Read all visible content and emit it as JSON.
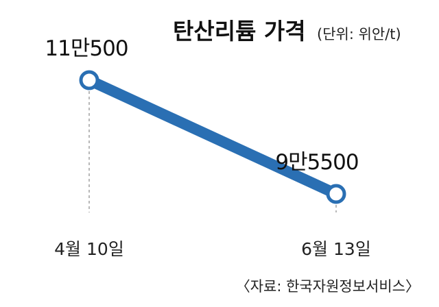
{
  "title": "탄산리튬 가격",
  "unit": "(단위: 위안/t)",
  "source": "〈자료: 한국자원정보서비스〉",
  "colors": {
    "line": "#2a6fb3",
    "marker_fill": "#ffffff",
    "guide": "#888888",
    "text": "#111111"
  },
  "chart_data": {
    "type": "line",
    "title": "탄산리튬 가격",
    "unit": "(단위: 위안/t)",
    "categories": [
      "4월 10일",
      "6월 13일"
    ],
    "values": [
      110500,
      95500
    ],
    "data_labels": [
      "11만500",
      "9만5500"
    ],
    "grid": false,
    "legend": "none"
  }
}
